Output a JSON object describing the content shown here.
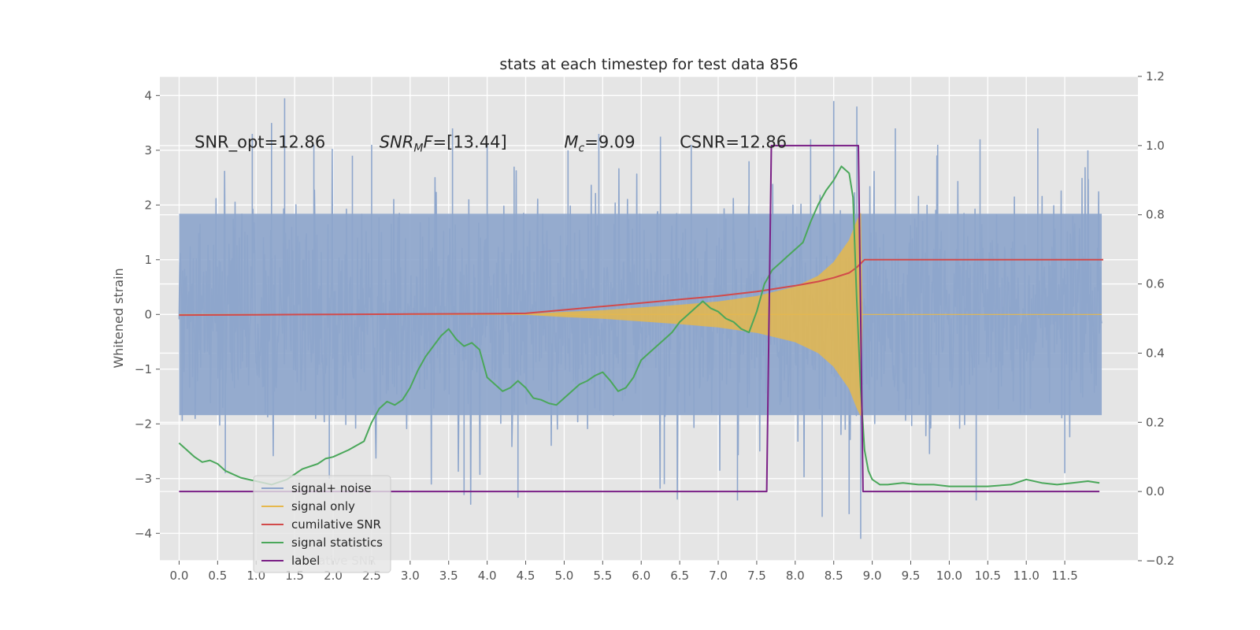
{
  "chart_data": {
    "type": "line",
    "title": "stats at each timestep for test data 856",
    "ylabel": "Whitened strain",
    "xlabel": "",
    "xlim": [
      -0.25,
      12.45
    ],
    "ylim": [
      -4.5,
      4.35
    ],
    "y2lim": [
      -0.2,
      1.2
    ],
    "x_ticks": [
      "0.0",
      "0.5",
      "1.0",
      "1.5",
      "2.0",
      "2.5",
      "3.0",
      "3.5",
      "4.0",
      "4.5",
      "5.0",
      "5.5",
      "6.0",
      "6.5",
      "7.0",
      "7.5",
      "8.0",
      "8.5",
      "9.0",
      "9.5",
      "10.0",
      "10.5",
      "11.0",
      "11.5"
    ],
    "y_ticks": [
      "4",
      "3",
      "2",
      "1",
      "0",
      "−1",
      "−2",
      "−3",
      "−4"
    ],
    "y2_ticks": [
      "1.2",
      "1.0",
      "0.8",
      "0.6",
      "0.4",
      "0.2",
      "0.0",
      "−0.2"
    ],
    "grid": true,
    "legend_position": "lower-left",
    "annotations": [
      {
        "label": "SNR_opt=12.86",
        "x": 0.2,
        "y": 3.05
      },
      {
        "label": "SNR_MF=[13.44]",
        "x": 2.6,
        "y": 3.05
      },
      {
        "label": "M_c=9.09",
        "x": 5.0,
        "y": 3.05
      },
      {
        "label": "CSNR=12.86",
        "x": 6.5,
        "y": 3.05
      }
    ],
    "legend_ghost_text": "lative SNR",
    "series": [
      {
        "name": "signal+ noise",
        "axis": "left",
        "color": "#8ea6cc",
        "typical_amplitude": 1.6,
        "peak_amplitude": 4.0,
        "x_range": [
          0.0,
          11.98
        ],
        "spikes": [
          [
            0.95,
            3.3
          ],
          [
            1.2,
            3.5
          ],
          [
            1.37,
            3.95
          ],
          [
            1.75,
            3.1
          ],
          [
            2.25,
            2.9
          ],
          [
            2.5,
            3.1
          ],
          [
            3.55,
            3.4
          ],
          [
            4.0,
            3.1
          ],
          [
            4.35,
            2.7
          ],
          [
            5.05,
            3.0
          ],
          [
            5.45,
            3.3
          ],
          [
            6.25,
            3.25
          ],
          [
            6.65,
            3.1
          ],
          [
            7.4,
            2.8
          ],
          [
            8.2,
            3.2
          ],
          [
            8.5,
            3.9
          ],
          [
            8.8,
            3.8
          ],
          [
            9.3,
            3.4
          ],
          [
            9.85,
            3.1
          ],
          [
            10.4,
            3.2
          ],
          [
            11.15,
            3.4
          ],
          [
            11.8,
            3.0
          ]
        ],
        "neg_spikes": [
          [
            0.6,
            -2.9
          ],
          [
            1.95,
            -3.0
          ],
          [
            3.7,
            -3.3
          ],
          [
            4.4,
            -3.35
          ],
          [
            6.3,
            -3.1
          ],
          [
            7.25,
            -3.4
          ],
          [
            8.35,
            -3.7
          ],
          [
            8.7,
            -3.65
          ],
          [
            8.85,
            -4.1
          ],
          [
            10.35,
            -3.4
          ],
          [
            11.5,
            -2.9
          ]
        ]
      },
      {
        "name": "signal only",
        "axis": "left",
        "color": "#e6b84d",
        "envelope": {
          "x": [
            4.5,
            5.0,
            5.5,
            6.0,
            6.5,
            7.0,
            7.5,
            8.0,
            8.3,
            8.5,
            8.7,
            8.8,
            8.85,
            8.87
          ],
          "amplitude": [
            0.0,
            0.04,
            0.07,
            0.12,
            0.17,
            0.23,
            0.33,
            0.5,
            0.7,
            0.95,
            1.35,
            1.7,
            1.85,
            0.0
          ]
        }
      },
      {
        "name": "cumilative SNR",
        "axis": "right",
        "color": "#d24a4a",
        "x": [
          0.0,
          1.0,
          2.0,
          3.0,
          4.0,
          4.5,
          5.0,
          5.5,
          6.0,
          6.5,
          7.0,
          7.5,
          8.0,
          8.3,
          8.5,
          8.7,
          8.8,
          8.9,
          12.0
        ],
        "y": [
          0.51,
          0.511,
          0.512,
          0.513,
          0.514,
          0.515,
          0.525,
          0.535,
          0.545,
          0.555,
          0.565,
          0.578,
          0.595,
          0.607,
          0.618,
          0.632,
          0.648,
          0.67,
          0.67
        ]
      },
      {
        "name": "signal statistics",
        "axis": "right",
        "color": "#4aa75a",
        "x": [
          0.0,
          0.1,
          0.2,
          0.3,
          0.4,
          0.5,
          0.6,
          0.8,
          1.0,
          1.2,
          1.4,
          1.6,
          1.8,
          1.9,
          2.0,
          2.2,
          2.4,
          2.5,
          2.6,
          2.7,
          2.8,
          2.9,
          3.0,
          3.1,
          3.2,
          3.3,
          3.4,
          3.5,
          3.6,
          3.7,
          3.8,
          3.9,
          4.0,
          4.1,
          4.2,
          4.3,
          4.4,
          4.5,
          4.6,
          4.7,
          4.8,
          4.9,
          5.0,
          5.1,
          5.2,
          5.3,
          5.4,
          5.5,
          5.6,
          5.7,
          5.8,
          5.9,
          6.0,
          6.1,
          6.2,
          6.3,
          6.4,
          6.5,
          6.6,
          6.7,
          6.8,
          6.9,
          7.0,
          7.1,
          7.2,
          7.3,
          7.4,
          7.5,
          7.6,
          7.7,
          7.8,
          7.9,
          8.0,
          8.1,
          8.2,
          8.3,
          8.4,
          8.5,
          8.6,
          8.7,
          8.75,
          8.8,
          8.85,
          8.9,
          8.95,
          9.0,
          9.1,
          9.2,
          9.4,
          9.6,
          9.8,
          10.0,
          10.2,
          10.5,
          10.8,
          11.0,
          11.2,
          11.4,
          11.6,
          11.8,
          11.95
        ],
        "y": [
          0.14,
          0.12,
          0.1,
          0.085,
          0.09,
          0.08,
          0.06,
          0.04,
          0.03,
          0.02,
          0.035,
          0.065,
          0.08,
          0.095,
          0.1,
          0.12,
          0.145,
          0.2,
          0.24,
          0.26,
          0.25,
          0.265,
          0.3,
          0.35,
          0.39,
          0.42,
          0.45,
          0.47,
          0.44,
          0.42,
          0.43,
          0.41,
          0.33,
          0.31,
          0.29,
          0.3,
          0.32,
          0.3,
          0.27,
          0.265,
          0.255,
          0.25,
          0.27,
          0.29,
          0.31,
          0.32,
          0.335,
          0.345,
          0.32,
          0.29,
          0.3,
          0.33,
          0.38,
          0.4,
          0.42,
          0.44,
          0.46,
          0.49,
          0.51,
          0.53,
          0.55,
          0.53,
          0.52,
          0.5,
          0.49,
          0.47,
          0.46,
          0.52,
          0.6,
          0.64,
          0.66,
          0.68,
          0.7,
          0.72,
          0.78,
          0.83,
          0.87,
          0.9,
          0.94,
          0.92,
          0.85,
          0.55,
          0.3,
          0.12,
          0.06,
          0.035,
          0.02,
          0.02,
          0.025,
          0.02,
          0.02,
          0.015,
          0.015,
          0.015,
          0.02,
          0.035,
          0.025,
          0.02,
          0.025,
          0.03,
          0.025
        ]
      },
      {
        "name": "label",
        "axis": "right",
        "color": "#7a1f86",
        "x": [
          0.0,
          7.63,
          7.69,
          8.82,
          8.88,
          11.95
        ],
        "y": [
          0.0,
          0.0,
          1.0,
          1.0,
          0.0,
          0.0
        ]
      }
    ]
  }
}
